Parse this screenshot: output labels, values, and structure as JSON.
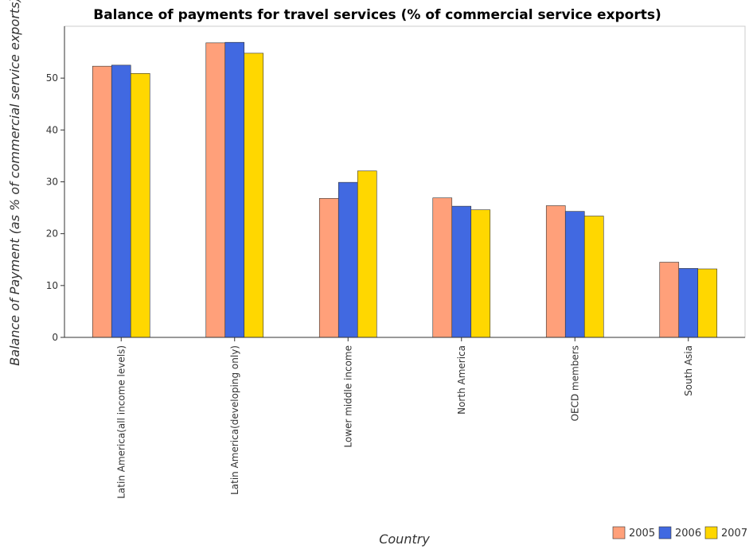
{
  "chart_data": {
    "type": "bar",
    "title": "Balance of payments for travel services (% of commercial service exports)",
    "xlabel": "Country",
    "ylabel": "Balance of Payment (as % of commercial service exports)",
    "categories": [
      "Latin America(all income levels)",
      "Latin America(developing only)",
      "Lower middle income",
      "North America",
      "OECD members",
      "South Asia"
    ],
    "series": [
      {
        "name": "2005",
        "color": "#ffa07a",
        "values": [
          52.3,
          56.8,
          26.8,
          26.9,
          25.4,
          14.5
        ]
      },
      {
        "name": "2006",
        "color": "#4169e1",
        "values": [
          52.5,
          56.9,
          29.9,
          25.3,
          24.3,
          13.3
        ]
      },
      {
        "name": "2007",
        "color": "#ffd700",
        "values": [
          50.9,
          54.8,
          32.1,
          24.6,
          23.4,
          13.2
        ]
      }
    ],
    "ylim": [
      0,
      60
    ],
    "yticks": [
      0,
      10,
      20,
      30,
      40,
      50
    ],
    "grid": false,
    "legend_position": "bottom-right"
  }
}
